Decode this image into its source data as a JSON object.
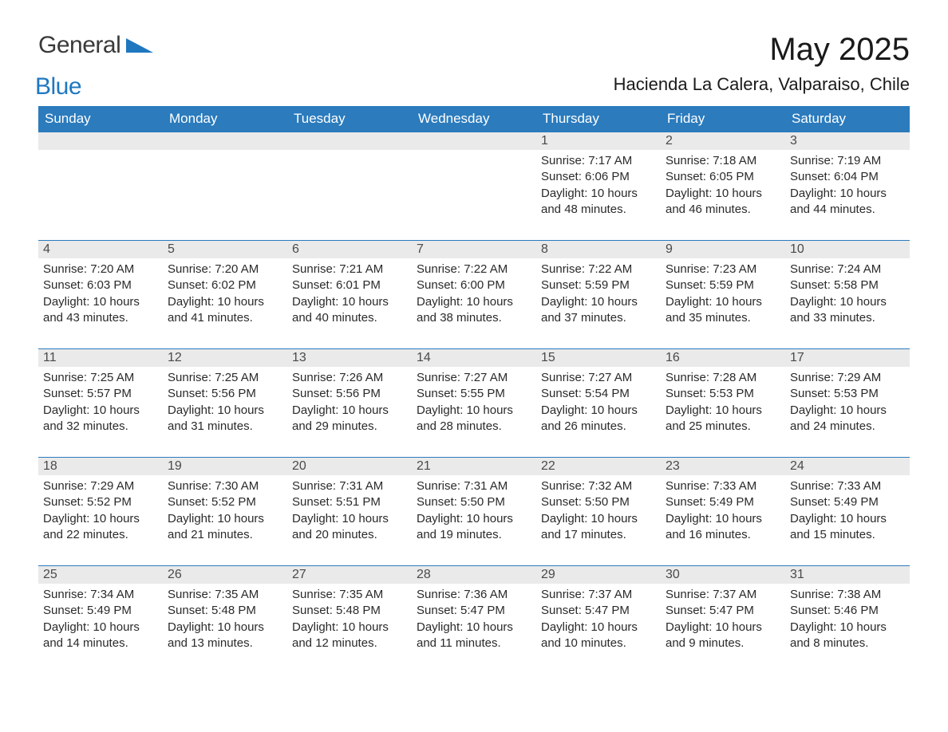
{
  "logo": {
    "general": "General",
    "blue": "Blue",
    "accent_color": "#1f77c0",
    "text_color": "#3a3a3a"
  },
  "title": {
    "month": "May 2025",
    "location": "Hacienda La Calera, Valparaiso, Chile"
  },
  "calendar": {
    "header_bg": "#2b7bbd",
    "header_fg": "#ffffff",
    "row_separator_color": "#2b7bbd",
    "daynum_bg": "#eaeaea",
    "body_bg": "#ffffff",
    "text_color": "#2a2a2a",
    "font_size_header": 17,
    "font_size_daynum": 16,
    "font_size_body": 15,
    "columns": [
      "Sunday",
      "Monday",
      "Tuesday",
      "Wednesday",
      "Thursday",
      "Friday",
      "Saturday"
    ],
    "weeks": [
      [
        {
          "day": "",
          "sunrise": "",
          "sunset": "",
          "daylight": ""
        },
        {
          "day": "",
          "sunrise": "",
          "sunset": "",
          "daylight": ""
        },
        {
          "day": "",
          "sunrise": "",
          "sunset": "",
          "daylight": ""
        },
        {
          "day": "",
          "sunrise": "",
          "sunset": "",
          "daylight": ""
        },
        {
          "day": "1",
          "sunrise": "Sunrise: 7:17 AM",
          "sunset": "Sunset: 6:06 PM",
          "daylight": "Daylight: 10 hours and 48 minutes."
        },
        {
          "day": "2",
          "sunrise": "Sunrise: 7:18 AM",
          "sunset": "Sunset: 6:05 PM",
          "daylight": "Daylight: 10 hours and 46 minutes."
        },
        {
          "day": "3",
          "sunrise": "Sunrise: 7:19 AM",
          "sunset": "Sunset: 6:04 PM",
          "daylight": "Daylight: 10 hours and 44 minutes."
        }
      ],
      [
        {
          "day": "4",
          "sunrise": "Sunrise: 7:20 AM",
          "sunset": "Sunset: 6:03 PM",
          "daylight": "Daylight: 10 hours and 43 minutes."
        },
        {
          "day": "5",
          "sunrise": "Sunrise: 7:20 AM",
          "sunset": "Sunset: 6:02 PM",
          "daylight": "Daylight: 10 hours and 41 minutes."
        },
        {
          "day": "6",
          "sunrise": "Sunrise: 7:21 AM",
          "sunset": "Sunset: 6:01 PM",
          "daylight": "Daylight: 10 hours and 40 minutes."
        },
        {
          "day": "7",
          "sunrise": "Sunrise: 7:22 AM",
          "sunset": "Sunset: 6:00 PM",
          "daylight": "Daylight: 10 hours and 38 minutes."
        },
        {
          "day": "8",
          "sunrise": "Sunrise: 7:22 AM",
          "sunset": "Sunset: 5:59 PM",
          "daylight": "Daylight: 10 hours and 37 minutes."
        },
        {
          "day": "9",
          "sunrise": "Sunrise: 7:23 AM",
          "sunset": "Sunset: 5:59 PM",
          "daylight": "Daylight: 10 hours and 35 minutes."
        },
        {
          "day": "10",
          "sunrise": "Sunrise: 7:24 AM",
          "sunset": "Sunset: 5:58 PM",
          "daylight": "Daylight: 10 hours and 33 minutes."
        }
      ],
      [
        {
          "day": "11",
          "sunrise": "Sunrise: 7:25 AM",
          "sunset": "Sunset: 5:57 PM",
          "daylight": "Daylight: 10 hours and 32 minutes."
        },
        {
          "day": "12",
          "sunrise": "Sunrise: 7:25 AM",
          "sunset": "Sunset: 5:56 PM",
          "daylight": "Daylight: 10 hours and 31 minutes."
        },
        {
          "day": "13",
          "sunrise": "Sunrise: 7:26 AM",
          "sunset": "Sunset: 5:56 PM",
          "daylight": "Daylight: 10 hours and 29 minutes."
        },
        {
          "day": "14",
          "sunrise": "Sunrise: 7:27 AM",
          "sunset": "Sunset: 5:55 PM",
          "daylight": "Daylight: 10 hours and 28 minutes."
        },
        {
          "day": "15",
          "sunrise": "Sunrise: 7:27 AM",
          "sunset": "Sunset: 5:54 PM",
          "daylight": "Daylight: 10 hours and 26 minutes."
        },
        {
          "day": "16",
          "sunrise": "Sunrise: 7:28 AM",
          "sunset": "Sunset: 5:53 PM",
          "daylight": "Daylight: 10 hours and 25 minutes."
        },
        {
          "day": "17",
          "sunrise": "Sunrise: 7:29 AM",
          "sunset": "Sunset: 5:53 PM",
          "daylight": "Daylight: 10 hours and 24 minutes."
        }
      ],
      [
        {
          "day": "18",
          "sunrise": "Sunrise: 7:29 AM",
          "sunset": "Sunset: 5:52 PM",
          "daylight": "Daylight: 10 hours and 22 minutes."
        },
        {
          "day": "19",
          "sunrise": "Sunrise: 7:30 AM",
          "sunset": "Sunset: 5:52 PM",
          "daylight": "Daylight: 10 hours and 21 minutes."
        },
        {
          "day": "20",
          "sunrise": "Sunrise: 7:31 AM",
          "sunset": "Sunset: 5:51 PM",
          "daylight": "Daylight: 10 hours and 20 minutes."
        },
        {
          "day": "21",
          "sunrise": "Sunrise: 7:31 AM",
          "sunset": "Sunset: 5:50 PM",
          "daylight": "Daylight: 10 hours and 19 minutes."
        },
        {
          "day": "22",
          "sunrise": "Sunrise: 7:32 AM",
          "sunset": "Sunset: 5:50 PM",
          "daylight": "Daylight: 10 hours and 17 minutes."
        },
        {
          "day": "23",
          "sunrise": "Sunrise: 7:33 AM",
          "sunset": "Sunset: 5:49 PM",
          "daylight": "Daylight: 10 hours and 16 minutes."
        },
        {
          "day": "24",
          "sunrise": "Sunrise: 7:33 AM",
          "sunset": "Sunset: 5:49 PM",
          "daylight": "Daylight: 10 hours and 15 minutes."
        }
      ],
      [
        {
          "day": "25",
          "sunrise": "Sunrise: 7:34 AM",
          "sunset": "Sunset: 5:49 PM",
          "daylight": "Daylight: 10 hours and 14 minutes."
        },
        {
          "day": "26",
          "sunrise": "Sunrise: 7:35 AM",
          "sunset": "Sunset: 5:48 PM",
          "daylight": "Daylight: 10 hours and 13 minutes."
        },
        {
          "day": "27",
          "sunrise": "Sunrise: 7:35 AM",
          "sunset": "Sunset: 5:48 PM",
          "daylight": "Daylight: 10 hours and 12 minutes."
        },
        {
          "day": "28",
          "sunrise": "Sunrise: 7:36 AM",
          "sunset": "Sunset: 5:47 PM",
          "daylight": "Daylight: 10 hours and 11 minutes."
        },
        {
          "day": "29",
          "sunrise": "Sunrise: 7:37 AM",
          "sunset": "Sunset: 5:47 PM",
          "daylight": "Daylight: 10 hours and 10 minutes."
        },
        {
          "day": "30",
          "sunrise": "Sunrise: 7:37 AM",
          "sunset": "Sunset: 5:47 PM",
          "daylight": "Daylight: 10 hours and 9 minutes."
        },
        {
          "day": "31",
          "sunrise": "Sunrise: 7:38 AM",
          "sunset": "Sunset: 5:46 PM",
          "daylight": "Daylight: 10 hours and 8 minutes."
        }
      ]
    ]
  }
}
